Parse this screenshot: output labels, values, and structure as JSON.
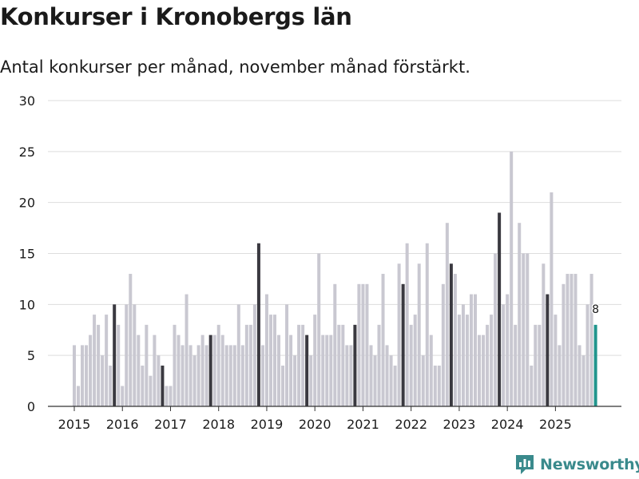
{
  "title": "Konkurser i Kronobergs län",
  "subtitle": "Antal konkurser per månad, november månad förstärkt.",
  "brand": "Newsworthy",
  "colors": {
    "bar": "#c9c8d1",
    "highlight": "#3a3940",
    "latest": "#21958d",
    "grid": "#dddddd"
  },
  "chart_data": {
    "type": "bar",
    "title": "Konkurser i Kronobergs län",
    "xlabel": "",
    "ylabel": "",
    "ylim": [
      0,
      30
    ],
    "y_ticks": [
      0,
      5,
      10,
      15,
      20,
      25,
      30
    ],
    "x_tick_labels": [
      "2015",
      "2016",
      "2017",
      "2018",
      "2019",
      "2020",
      "2021",
      "2022",
      "2023",
      "2024",
      "2025"
    ],
    "start": "2015-01",
    "highlight_month": "november",
    "latest_label": "8",
    "values": [
      6,
      2,
      6,
      6,
      7,
      9,
      8,
      5,
      9,
      4,
      10,
      8,
      2,
      10,
      13,
      10,
      7,
      4,
      8,
      3,
      7,
      5,
      4,
      2,
      2,
      8,
      7,
      6,
      11,
      6,
      5,
      6,
      7,
      6,
      7,
      7,
      8,
      7,
      6,
      6,
      6,
      10,
      6,
      8,
      8,
      10,
      16,
      6,
      11,
      9,
      9,
      7,
      4,
      10,
      7,
      5,
      8,
      8,
      7,
      5,
      9,
      15,
      7,
      7,
      7,
      12,
      8,
      8,
      6,
      6,
      8,
      12,
      12,
      12,
      6,
      5,
      8,
      13,
      6,
      5,
      4,
      14,
      12,
      16,
      8,
      9,
      14,
      5,
      16,
      7,
      4,
      4,
      12,
      18,
      14,
      13,
      9,
      10,
      9,
      11,
      11,
      7,
      7,
      8,
      9,
      15,
      19,
      10,
      11,
      25,
      8,
      18,
      15,
      15,
      4,
      8,
      8,
      14,
      11,
      21,
      9,
      6,
      12,
      13,
      13,
      13,
      6,
      5,
      10,
      13,
      8
    ]
  }
}
